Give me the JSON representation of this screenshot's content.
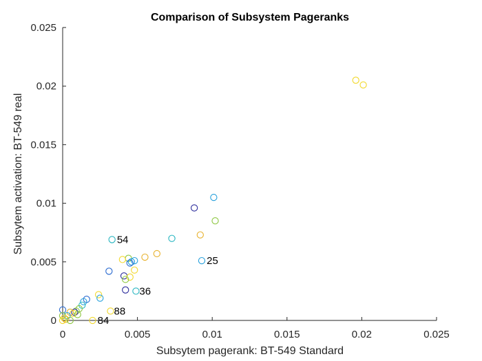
{
  "chart_data": {
    "type": "scatter",
    "title": "Comparison of Subsystem Pageranks",
    "xlabel": "Subsytem pagerank: BT-549 Standard",
    "ylabel": "Subsytem activation: BT-549 real",
    "xlim": [
      0,
      0.025
    ],
    "ylim": [
      0,
      0.025
    ],
    "xticks": [
      0,
      0.005,
      0.01,
      0.015,
      0.02,
      0.025
    ],
    "xtick_labels": [
      "0",
      "0.005",
      "0.01",
      "0.015",
      "0.02",
      "0.025"
    ],
    "yticks": [
      0,
      0.005,
      0.01,
      0.015,
      0.02,
      0.025
    ],
    "ytick_labels": [
      "0",
      "0.005",
      "0.01",
      "0.015",
      "0.02",
      "0.025"
    ],
    "grid": false,
    "marker": "open-circle",
    "points": [
      {
        "x": 0.0196,
        "y": 0.0205,
        "color": "#f2d82a"
      },
      {
        "x": 0.0201,
        "y": 0.0201,
        "color": "#f2d82a"
      },
      {
        "x": 0.0101,
        "y": 0.0105,
        "color": "#26a0dc"
      },
      {
        "x": 0.0088,
        "y": 0.0096,
        "color": "#2a2a9a"
      },
      {
        "x": 0.0102,
        "y": 0.0085,
        "color": "#8cc63f"
      },
      {
        "x": 0.0092,
        "y": 0.0073,
        "color": "#e7b02a"
      },
      {
        "x": 0.0073,
        "y": 0.007,
        "color": "#26b5c0"
      },
      {
        "x": 0.0033,
        "y": 0.0069,
        "color": "#26b5c0"
      },
      {
        "x": 0.0063,
        "y": 0.0057,
        "color": "#e7b02a"
      },
      {
        "x": 0.0055,
        "y": 0.0054,
        "color": "#e7b02a"
      },
      {
        "x": 0.0044,
        "y": 0.0053,
        "color": "#8cc63f"
      },
      {
        "x": 0.004,
        "y": 0.0052,
        "color": "#f2d82a"
      },
      {
        "x": 0.0046,
        "y": 0.005,
        "color": "#26a0dc"
      },
      {
        "x": 0.0048,
        "y": 0.0051,
        "color": "#26a0dc"
      },
      {
        "x": 0.0045,
        "y": 0.0049,
        "color": "#2a6ad0"
      },
      {
        "x": 0.0093,
        "y": 0.0051,
        "color": "#26a0dc"
      },
      {
        "x": 0.0048,
        "y": 0.0043,
        "color": "#f2d82a"
      },
      {
        "x": 0.0031,
        "y": 0.0042,
        "color": "#2a6ad0"
      },
      {
        "x": 0.0041,
        "y": 0.0038,
        "color": "#2a2a9a"
      },
      {
        "x": 0.0045,
        "y": 0.0037,
        "color": "#f2d82a"
      },
      {
        "x": 0.0042,
        "y": 0.0035,
        "color": "#8cc63f"
      },
      {
        "x": 0.0042,
        "y": 0.0026,
        "color": "#2a2a9a"
      },
      {
        "x": 0.0049,
        "y": 0.0025,
        "color": "#26b5c0"
      },
      {
        "x": 0.0024,
        "y": 0.0022,
        "color": "#f2d82a"
      },
      {
        "x": 0.0025,
        "y": 0.0019,
        "color": "#26a0dc"
      },
      {
        "x": 0.0016,
        "y": 0.0018,
        "color": "#2a6ad0"
      },
      {
        "x": 0.0014,
        "y": 0.0016,
        "color": "#26a0dc"
      },
      {
        "x": 0.0013,
        "y": 0.0013,
        "color": "#26b5c0"
      },
      {
        "x": 0.0011,
        "y": 0.001,
        "color": "#8cc63f"
      },
      {
        "x": 0.0009,
        "y": 0.0008,
        "color": "#8cc63f"
      },
      {
        "x": 0.0008,
        "y": 0.0007,
        "color": "#2a2a9a"
      },
      {
        "x": 0.0007,
        "y": 0.0006,
        "color": "#f2d82a"
      },
      {
        "x": 0.0005,
        "y": 0.0007,
        "color": "#e7b02a"
      },
      {
        "x": 0.001,
        "y": 0.0005,
        "color": "#8cc63f"
      },
      {
        "x": 0.0003,
        "y": 0.0004,
        "color": "#26a0dc"
      },
      {
        "x": 0.0,
        "y": 0.0009,
        "color": "#2a6ad0"
      },
      {
        "x": 0.0,
        "y": 0.0004,
        "color": "#8cc63f"
      },
      {
        "x": 0.0001,
        "y": 0.0002,
        "color": "#f2d82a"
      },
      {
        "x": 0.0002,
        "y": 0.0001,
        "color": "#e7b02a"
      },
      {
        "x": 0.0,
        "y": 0.0,
        "color": "#f2d82a"
      },
      {
        "x": 0.0005,
        "y": 0.0,
        "color": "#8cc63f"
      },
      {
        "x": 0.0032,
        "y": 0.0008,
        "color": "#f2d82a"
      },
      {
        "x": 0.002,
        "y": 0.0,
        "color": "#f2d82a"
      }
    ],
    "annotations": [
      {
        "text": "54",
        "x": 0.0034,
        "y": 0.0069
      },
      {
        "text": "25",
        "x": 0.0094,
        "y": 0.0051
      },
      {
        "text": "36",
        "x": 0.0049,
        "y": 0.0025
      },
      {
        "text": "88",
        "x": 0.0032,
        "y": 0.0008
      },
      {
        "text": "84",
        "x": 0.0021,
        "y": 0.0
      }
    ]
  }
}
